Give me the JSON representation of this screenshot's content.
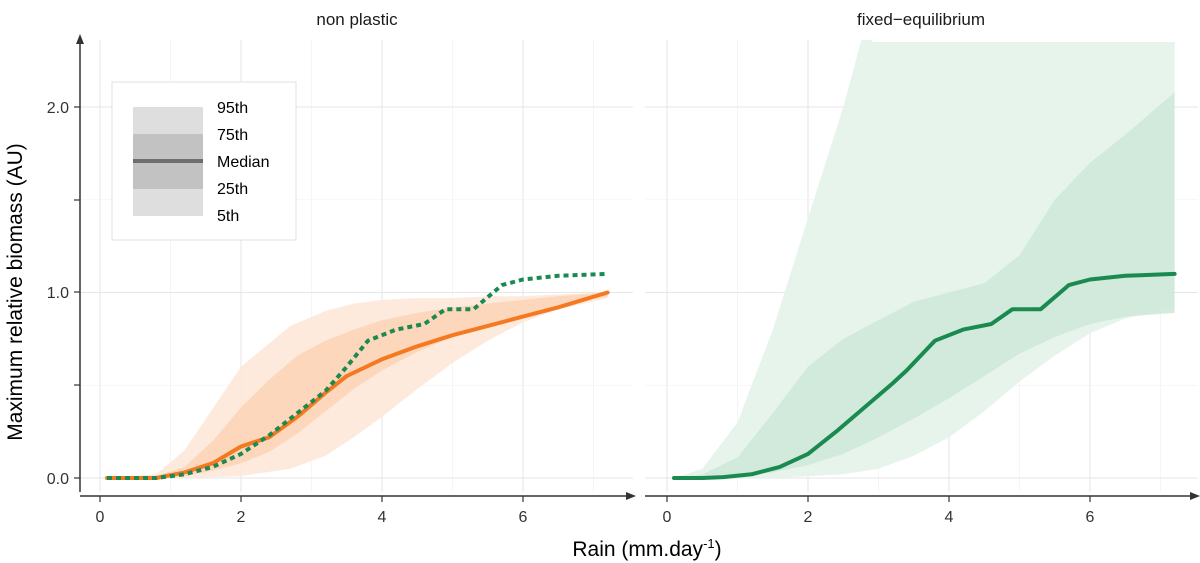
{
  "chart_data": {
    "type": "area",
    "xlabel_main": "Rain (mm.day",
    "xlabel_sup": "-1",
    "xlabel_close": ")",
    "ylabel": "Maximum relative biomass (AU)",
    "x_ticks": [
      "0",
      "2",
      "4",
      "6"
    ],
    "y_ticks": [
      "0.0",
      "1.0",
      "2.0"
    ],
    "xlim": [
      -0.3,
      7.5
    ],
    "ylim": [
      -0.05,
      2.35
    ],
    "grid": true,
    "legend": {
      "placement": "top-left",
      "items": [
        "95th",
        "75th",
        "Median",
        "25th",
        "5th"
      ]
    },
    "colors": {
      "orange": "#f47920",
      "green": "#1a8a50",
      "orange_band_outer": "#fde8d8",
      "orange_band_inner": "#fbd3b6",
      "green_band_outer": "#e3f3ea",
      "green_band_inner": "#cce8d8"
    },
    "panels": [
      {
        "strip": "non plastic",
        "bands": [
          {
            "name": "5th-95th",
            "x": [
              0.1,
              0.8,
              1.2,
              2.0,
              2.7,
              3.2,
              3.6,
              4.0,
              4.5,
              5.0,
              5.5,
              6.0,
              6.5,
              7.2
            ],
            "lower": [
              0,
              0,
              0,
              0.01,
              0.05,
              0.12,
              0.22,
              0.33,
              0.48,
              0.62,
              0.74,
              0.84,
              0.91,
              0.97
            ],
            "upper": [
              0,
              0.02,
              0.15,
              0.6,
              0.82,
              0.9,
              0.94,
              0.96,
              0.97,
              0.97,
              0.98,
              0.98,
              0.99,
              1.0
            ]
          },
          {
            "name": "25th-75th",
            "x": [
              0.1,
              0.8,
              1.2,
              1.6,
              2.0,
              2.4,
              2.8,
              3.2,
              3.6,
              4.0,
              4.5,
              5.0,
              5.5,
              6.0,
              6.5,
              7.2
            ],
            "lower": [
              0,
              0,
              0.01,
              0.04,
              0.08,
              0.14,
              0.24,
              0.36,
              0.48,
              0.58,
              0.68,
              0.76,
              0.82,
              0.88,
              0.93,
              0.98
            ],
            "upper": [
              0,
              0.01,
              0.06,
              0.2,
              0.38,
              0.53,
              0.66,
              0.74,
              0.8,
              0.85,
              0.89,
              0.92,
              0.94,
              0.96,
              0.98,
              1.0
            ]
          }
        ],
        "series": [
          {
            "color": "orange",
            "style": "solid",
            "x": [
              0.1,
              0.8,
              1.2,
              1.6,
              2.0,
              2.4,
              2.8,
              3.2,
              3.5,
              4.0,
              4.5,
              5.0,
              5.5,
              6.0,
              6.5,
              7.2
            ],
            "y": [
              0,
              0,
              0.03,
              0.08,
              0.17,
              0.22,
              0.33,
              0.46,
              0.55,
              0.64,
              0.71,
              0.77,
              0.82,
              0.87,
              0.92,
              1.0
            ]
          },
          {
            "color": "green",
            "style": "dotted",
            "x": [
              0.1,
              0.8,
              1.2,
              1.6,
              2.0,
              2.4,
              2.8,
              3.2,
              3.5,
              3.8,
              4.2,
              4.6,
              4.9,
              5.3,
              5.7,
              6.0,
              6.5,
              7.2
            ],
            "y": [
              0,
              0,
              0.02,
              0.06,
              0.13,
              0.23,
              0.35,
              0.47,
              0.6,
              0.74,
              0.8,
              0.83,
              0.91,
              0.91,
              1.04,
              1.07,
              1.09,
              1.1
            ]
          }
        ]
      },
      {
        "strip": "fixed−equilibrium",
        "bands": [
          {
            "name": "5th-95th",
            "x": [
              0.1,
              0.5,
              1.0,
              1.5,
              2.0,
              2.5,
              3.0,
              3.5,
              4.0,
              4.5,
              5.0,
              5.5,
              6.0,
              6.5,
              7.2
            ],
            "lower": [
              0,
              0,
              0,
              0,
              0.01,
              0.02,
              0.05,
              0.12,
              0.22,
              0.36,
              0.52,
              0.66,
              0.78,
              0.86,
              0.92
            ],
            "upper": [
              0,
              0.05,
              0.3,
              0.8,
              1.4,
              2.0,
              2.7,
              3.0,
              3.0,
              3.0,
              3.0,
              3.0,
              3.0,
              3.0,
              3.0
            ]
          },
          {
            "name": "25th-75th",
            "x": [
              0.1,
              0.5,
              1.0,
              1.5,
              2.0,
              2.5,
              3.0,
              3.5,
              4.0,
              4.5,
              5.0,
              5.5,
              6.0,
              6.5,
              7.2
            ],
            "lower": [
              0,
              0,
              0.01,
              0.03,
              0.07,
              0.13,
              0.22,
              0.32,
              0.43,
              0.55,
              0.67,
              0.76,
              0.83,
              0.87,
              0.89
            ],
            "upper": [
              0,
              0.02,
              0.11,
              0.35,
              0.6,
              0.75,
              0.85,
              0.95,
              1.0,
              1.05,
              1.2,
              1.5,
              1.7,
              1.85,
              2.08
            ]
          }
        ],
        "series": [
          {
            "color": "green",
            "style": "solid",
            "x": [
              0.1,
              0.5,
              0.8,
              1.2,
              1.6,
              2.0,
              2.4,
              2.8,
              3.2,
              3.4,
              3.8,
              4.2,
              4.6,
              4.9,
              5.3,
              5.7,
              6.0,
              6.5,
              7.2
            ],
            "y": [
              0,
              0,
              0.005,
              0.02,
              0.06,
              0.13,
              0.25,
              0.38,
              0.51,
              0.58,
              0.74,
              0.8,
              0.83,
              0.91,
              0.91,
              1.04,
              1.07,
              1.09,
              1.1
            ]
          }
        ]
      }
    ]
  }
}
